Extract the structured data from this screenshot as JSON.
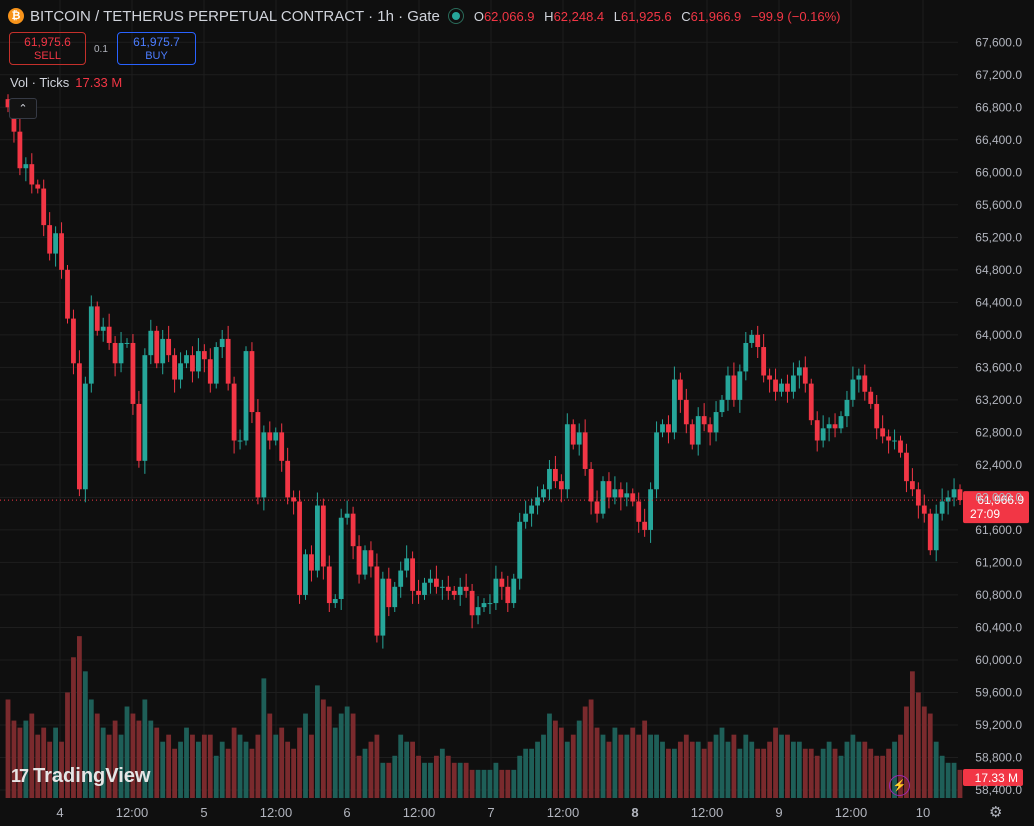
{
  "header": {
    "coin_icon_glyph": "₿",
    "symbol_title": "BITCOIN / TETHERUS PERPETUAL CONTRACT · 1h · Gate",
    "ohlc": [
      {
        "label": "O",
        "value": "62,066.9"
      },
      {
        "label": "H",
        "value": "62,248.4"
      },
      {
        "label": "L",
        "value": "61,925.6"
      },
      {
        "label": "C",
        "value": "61,966.9"
      }
    ],
    "change": "−99.9 (−0.16%)"
  },
  "trade": {
    "sell_price": "61,975.6",
    "sell_label": "SELL",
    "buy_price": "61,975.7",
    "buy_label": "BUY",
    "spread": "0.1"
  },
  "volume_legend": {
    "label": "Vol · Ticks",
    "value": "17.33 M"
  },
  "collapse_glyph": "⌃",
  "logo_text": "TradingView",
  "logo_mark": "17",
  "bolt_glyph": "⚡",
  "settings_glyph": "⚙",
  "colors": {
    "up": "#26a69a",
    "down": "#f23645",
    "up_vol": "#1e5f58",
    "down_vol": "#7a2a2d",
    "grid": "#1e1e1e",
    "price_line": "#f23645"
  },
  "chart_data": {
    "type": "candlestick",
    "interval": "1h",
    "y_axis": {
      "range": [
        58400,
        67800
      ],
      "ticks": [
        "67,600.0",
        "67,200.0",
        "66,800.0",
        "66,400.0",
        "66,000.0",
        "65,600.0",
        "65,200.0",
        "64,800.0",
        "64,400.0",
        "64,000.0",
        "63,600.0",
        "63,200.0",
        "62,800.0",
        "62,400.0",
        "62,000.0",
        "61,600.0",
        "61,200.0",
        "60,800.0",
        "60,400.0",
        "60,000.0",
        "59,600.0",
        "59,200.0",
        "58,800.0",
        "58,400.0"
      ]
    },
    "x_axis": {
      "labels": [
        "4",
        "12:00",
        "5",
        "12:00",
        "6",
        "12:00",
        "7",
        "12:00",
        "8",
        "12:00",
        "9",
        "12:00",
        "10"
      ],
      "bold": [
        "8"
      ]
    },
    "last_price": {
      "value": 61966.9,
      "label": "61,966.9",
      "countdown": "27:09"
    },
    "last_volume_label": "17.33 M",
    "volume_max": 27,
    "candles_close": [
      66800,
      66500,
      66050,
      66100,
      65850,
      65800,
      65350,
      65000,
      65250,
      64800,
      64200,
      63650,
      62100,
      63400,
      64350,
      64050,
      64100,
      63900,
      63650,
      63900,
      63900,
      63150,
      62450,
      63750,
      64050,
      63650,
      63950,
      63750,
      63450,
      63650,
      63750,
      63550,
      63800,
      63700,
      63400,
      63850,
      63950,
      63400,
      62700,
      62700,
      63800,
      63050,
      62000,
      62800,
      62700,
      62800,
      62450,
      62000,
      61950,
      60800,
      61300,
      61100,
      61900,
      61150,
      60700,
      60750,
      61750,
      61800,
      61400,
      61050,
      61350,
      61150,
      60300,
      61000,
      60650,
      60900,
      61100,
      61250,
      60850,
      60800,
      60950,
      61000,
      60900,
      60900,
      60850,
      60800,
      60900,
      60850,
      60550,
      60650,
      60700,
      60700,
      61000,
      60900,
      60700,
      61000,
      61700,
      61800,
      61900,
      62000,
      62100,
      62350,
      62200,
      62100,
      62900,
      62650,
      62800,
      62350,
      61950,
      61800,
      62200,
      62000,
      62100,
      62000,
      62050,
      61950,
      61700,
      61600,
      62100,
      62800,
      62900,
      62800,
      63450,
      63200,
      62900,
      62650,
      63000,
      62900,
      62800,
      63050,
      63200,
      63500,
      63200,
      63550,
      63900,
      64000,
      63850,
      63500,
      63450,
      63300,
      63400,
      63300,
      63500,
      63600,
      63400,
      62950,
      62700,
      62850,
      62900,
      62850,
      63000,
      63200,
      63450,
      63500,
      63300,
      63150,
      62850,
      62750,
      62700,
      62700,
      62550,
      62200,
      62100,
      61900,
      61800,
      61350,
      61800,
      61950,
      62000,
      62100,
      61966.9
    ],
    "candles_open_first": 66900,
    "volumes": [
      14,
      11,
      10,
      11,
      12,
      9,
      10,
      8,
      10,
      8,
      15,
      20,
      23,
      18,
      14,
      12,
      10,
      9,
      11,
      9,
      13,
      12,
      11,
      14,
      11,
      10,
      8,
      9,
      7,
      8,
      10,
      9,
      8,
      9,
      9,
      6,
      8,
      7,
      10,
      9,
      8,
      7,
      9,
      17,
      12,
      9,
      10,
      8,
      7,
      10,
      12,
      9,
      16,
      14,
      13,
      10,
      12,
      13,
      12,
      6,
      7,
      8,
      9,
      5,
      5,
      6,
      9,
      8,
      8,
      6,
      5,
      5,
      6,
      7,
      6,
      5,
      5,
      5,
      4,
      4,
      4,
      4,
      5,
      4,
      4,
      4,
      6,
      7,
      7,
      8,
      9,
      12,
      11,
      10,
      8,
      9,
      11,
      13,
      14,
      10,
      9,
      8,
      10,
      9,
      9,
      10,
      9,
      11,
      9,
      9,
      8,
      7,
      7,
      8,
      9,
      8,
      8,
      7,
      8,
      9,
      10,
      8,
      9,
      7,
      9,
      8,
      7,
      7,
      8,
      10,
      9,
      9,
      8,
      8,
      7,
      7,
      6,
      7,
      8,
      7,
      6,
      8,
      9,
      8,
      8,
      7,
      6,
      6,
      7,
      8,
      9,
      13,
      18,
      15,
      13,
      12,
      8,
      6,
      5,
      5,
      4
    ]
  }
}
